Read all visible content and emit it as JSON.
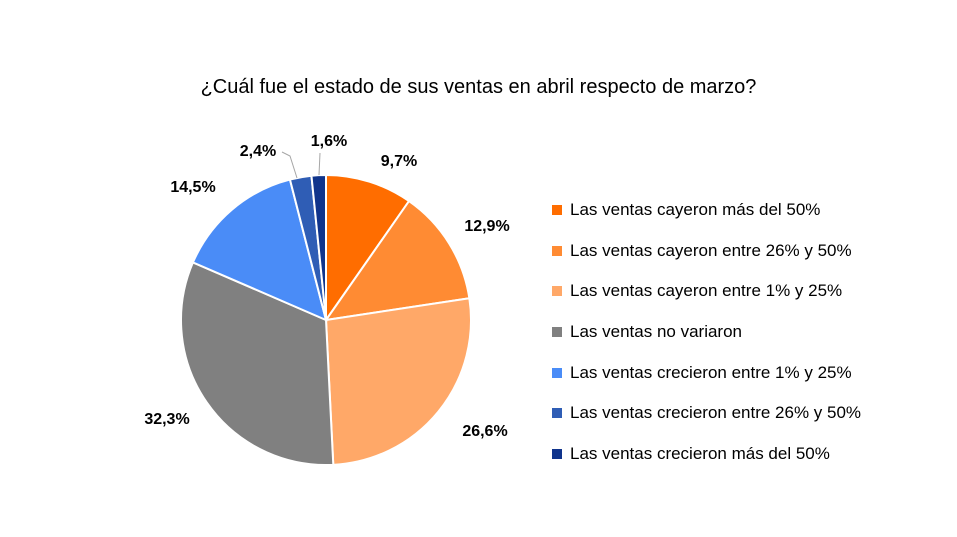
{
  "chart_data": {
    "type": "pie",
    "title": "¿Cuál fue el estado de sus ventas en abril respecto de marzo?",
    "legend_position": "right",
    "slices": [
      {
        "name": "Las ventas cayeron más del 50%",
        "value": 9.7,
        "label": "9,7%",
        "color": "#FF6D00"
      },
      {
        "name": "Las ventas cayeron entre 26% y 50%",
        "value": 12.9,
        "label": "12,9%",
        "color": "#FF8B33"
      },
      {
        "name": "Las ventas cayeron entre 1% y 25%",
        "value": 26.6,
        "label": "26,6%",
        "color": "#FFA868"
      },
      {
        "name": "Las ventas no variaron",
        "value": 32.3,
        "label": "32,3%",
        "color": "#808080"
      },
      {
        "name": "Las ventas crecieron entre 1% y 25%",
        "value": 14.5,
        "label": "14,5%",
        "color": "#4A8CF7"
      },
      {
        "name": "Las ventas crecieron entre 26% y 50%",
        "value": 2.4,
        "label": "2,4%",
        "color": "#2F5DB5"
      },
      {
        "name": "Las ventas crecieron más del 50%",
        "value": 1.6,
        "label": "1,6%",
        "color": "#10348C"
      }
    ]
  }
}
